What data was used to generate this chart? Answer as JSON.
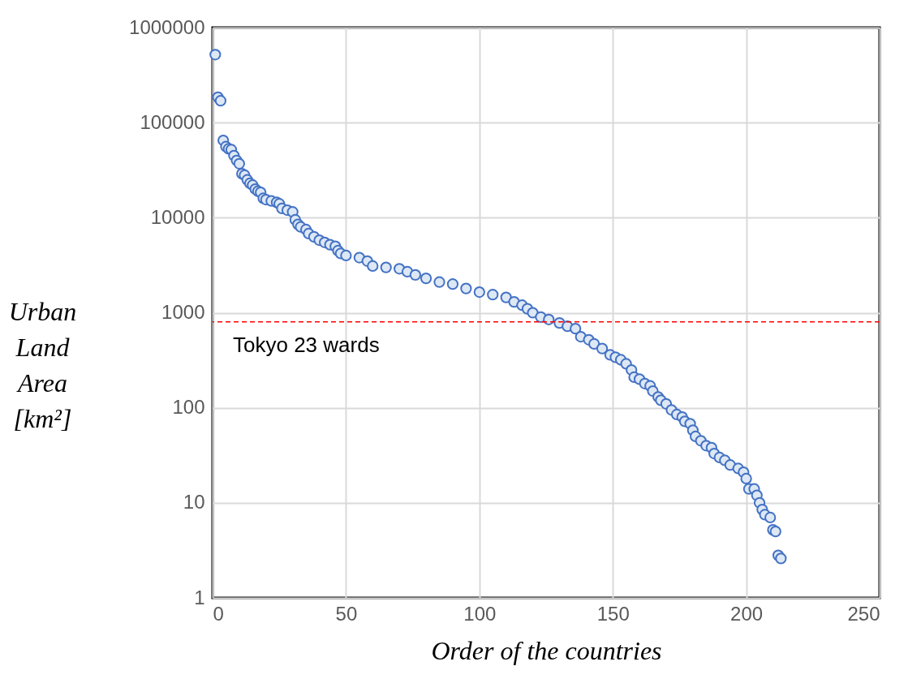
{
  "chart_data": {
    "type": "scatter",
    "xlabel": "Order of the countries",
    "ylabel": "Urban Land Area [km²]",
    "x": [
      1,
      2,
      3,
      4,
      5,
      6,
      7,
      8,
      9,
      10,
      11,
      12,
      13,
      14,
      15,
      16,
      17,
      18,
      19,
      20,
      22,
      24,
      25,
      26,
      28,
      30,
      31,
      32,
      33,
      35,
      36,
      38,
      40,
      42,
      44,
      46,
      47,
      48,
      50,
      55,
      58,
      60,
      65,
      70,
      73,
      76,
      80,
      85,
      90,
      95,
      100,
      105,
      110,
      113,
      116,
      118,
      120,
      123,
      126,
      130,
      133,
      136,
      138,
      141,
      143,
      146,
      149,
      151,
      153,
      155,
      157,
      158,
      160,
      162,
      164,
      165,
      167,
      168,
      170,
      172,
      174,
      176,
      177,
      179,
      180,
      181,
      183,
      185,
      187,
      188,
      190,
      192,
      194,
      197,
      199,
      200,
      201,
      203,
      204,
      205,
      206,
      207,
      209,
      210,
      211,
      212,
      213
    ],
    "series": [
      {
        "color": "#4472c4",
        "values": [
          520000,
          185000,
          170000,
          65000,
          56000,
          53000,
          52000,
          45000,
          40000,
          37000,
          29000,
          28000,
          25000,
          23000,
          22000,
          20000,
          19000,
          18500,
          16000,
          15500,
          15000,
          14500,
          14000,
          12500,
          12000,
          11500,
          9500,
          8500,
          8000,
          7500,
          6800,
          6300,
          5800,
          5500,
          5200,
          5000,
          4500,
          4200,
          4000,
          3800,
          3500,
          3100,
          3000,
          2900,
          2700,
          2500,
          2300,
          2100,
          2000,
          1800,
          1650,
          1550,
          1450,
          1300,
          1200,
          1100,
          1000,
          900,
          850,
          780,
          720,
          680,
          560,
          520,
          470,
          420,
          360,
          340,
          320,
          290,
          250,
          210,
          200,
          180,
          170,
          150,
          130,
          120,
          110,
          95,
          85,
          80,
          72,
          68,
          58,
          50,
          45,
          40,
          38,
          33,
          30,
          28,
          25,
          23,
          21,
          18,
          14,
          14,
          12,
          10,
          8.5,
          7.5,
          7,
          5.2,
          5,
          2.8,
          2.6
        ]
      }
    ],
    "xlim": [
      0,
      250
    ],
    "xticks": [
      0,
      50,
      100,
      150,
      200,
      250
    ],
    "ylim": [
      1,
      1000000
    ],
    "yticks": [
      1,
      10,
      100,
      1000,
      10000,
      100000,
      1000000
    ],
    "log": "y",
    "grid": true,
    "marker": "circle",
    "ref_lines": [
      {
        "axis": "y",
        "value": 800,
        "label": "Tokyo 23 wards",
        "color": "#ff0000",
        "line_style": "dashed"
      }
    ]
  }
}
